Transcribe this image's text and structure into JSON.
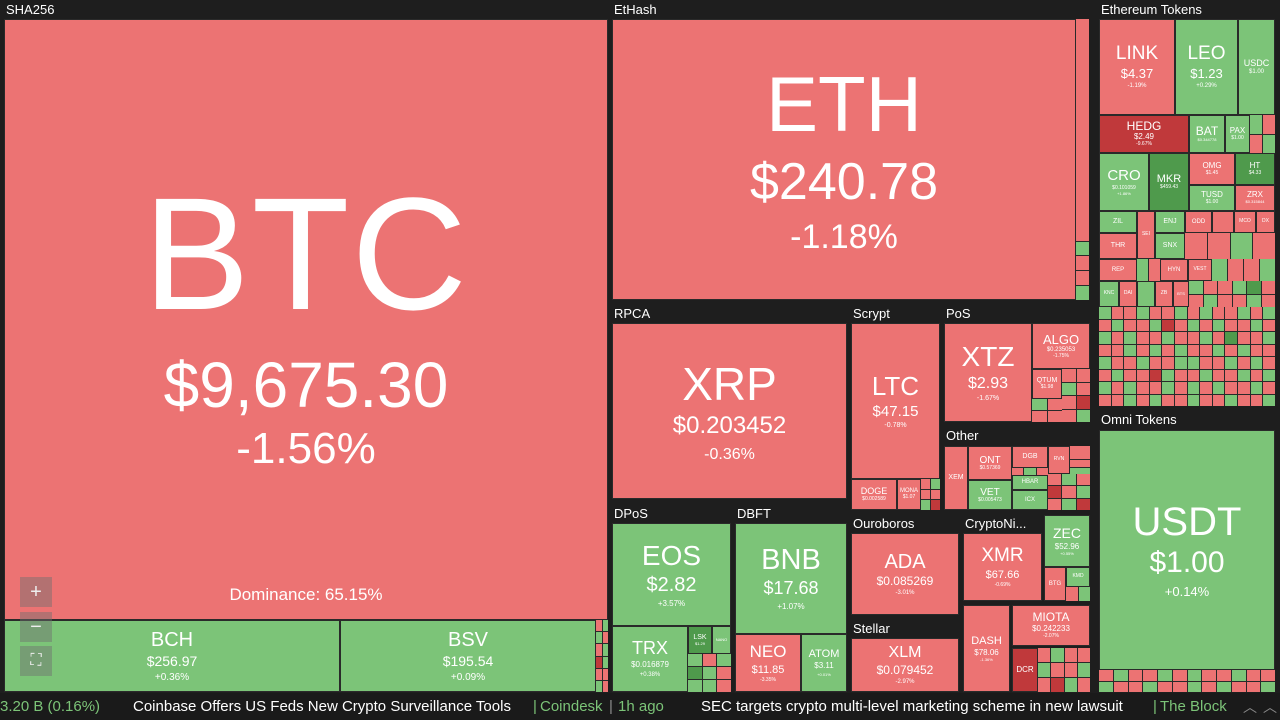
{
  "groups": {
    "sha256": "SHA256",
    "ethash": "EtHash",
    "eth_tokens": "Ethereum Tokens",
    "rpca": "RPCA",
    "scrypt": "Scrypt",
    "pos": "PoS",
    "other": "Other",
    "omni": "Omni Tokens",
    "dpos": "DPoS",
    "dbft": "DBFT",
    "ouroboros": "Ouroboros",
    "cryptonight": "CryptoNi...",
    "stellar": "Stellar"
  },
  "btc": {
    "sym": "BTC",
    "price": "$9,675.30",
    "chg": "-1.56%",
    "dominance": "Dominance: 65.15%"
  },
  "bch": {
    "sym": "BCH",
    "price": "$256.97",
    "chg": "+0.36%"
  },
  "bsv": {
    "sym": "BSV",
    "price": "$195.54",
    "chg": "+0.09%"
  },
  "eth": {
    "sym": "ETH",
    "price": "$240.78",
    "chg": "-1.18%"
  },
  "xrp": {
    "sym": "XRP",
    "price": "$0.203452",
    "chg": "-0.36%"
  },
  "ltc": {
    "sym": "LTC",
    "price": "$47.15",
    "chg": "-0.78%"
  },
  "doge": {
    "sym": "DOGE",
    "price": "$0.002589",
    "chg": "-1.11%"
  },
  "mona": {
    "sym": "MONA",
    "price": "$1.07",
    "chg": "-0.46%"
  },
  "xtz": {
    "sym": "XTZ",
    "price": "$2.93",
    "chg": "-1.67%"
  },
  "algo": {
    "sym": "ALGO",
    "price": "$0.235053",
    "chg": "-1.75%"
  },
  "qtum": {
    "sym": "QTUM",
    "price": "$1.98",
    "chg": "-0.32%"
  },
  "ont": {
    "sym": "ONT",
    "price": "$0.57369",
    "chg": "-0.89%"
  },
  "dgb": {
    "sym": "DGB",
    "price": "$0.021108",
    "chg": "-1.78%"
  },
  "xem": {
    "sym": "XEM",
    "price": "$0.04",
    "chg": "-1.27%"
  },
  "vet": {
    "sym": "VET",
    "price": "$0.005473",
    "chg": "+0.29%"
  },
  "hbar": {
    "sym": "HBAR",
    "price": "$0.04",
    "chg": "+1.10%"
  },
  "icx": {
    "sym": "ICX",
    "price": "$0.186",
    "chg": "+0.92%"
  },
  "rvn": {
    "sym": "RVN",
    "price": "",
    "chg": ""
  },
  "link": {
    "sym": "LINK",
    "price": "$4.37",
    "chg": "-1.19%"
  },
  "leo": {
    "sym": "LEO",
    "price": "$1.23",
    "chg": "+0.29%"
  },
  "usdc": {
    "sym": "USDC",
    "price": "$1.00",
    "chg": "+0.01%"
  },
  "hedg": {
    "sym": "HEDG",
    "price": "$2.49",
    "chg": "-9.67%"
  },
  "bat": {
    "sym": "BAT",
    "price": "$0.344778",
    "chg": "+0.45%"
  },
  "pax": {
    "sym": "PAX",
    "price": "$1.00",
    "chg": "+0.02%"
  },
  "cro": {
    "sym": "CRO",
    "price": "$0.101059",
    "chg": "+1.86%"
  },
  "mkr": {
    "sym": "MKR",
    "price": "$459.43",
    "chg": "+0.17%"
  },
  "omg": {
    "sym": "OMG",
    "price": "$1.45",
    "chg": "-1.10%"
  },
  "ht": {
    "sym": "HT",
    "price": "$4.33",
    "chg": "+0.86%"
  },
  "tusd": {
    "sym": "TUSD",
    "price": "$1.00",
    "chg": "+0.02%"
  },
  "zrx": {
    "sym": "ZRX",
    "price": "$0.315844",
    "chg": "-1.68%"
  },
  "zil": {
    "sym": "ZIL"
  },
  "enj": {
    "sym": "ENJ"
  },
  "snx": {
    "sym": "SNX"
  },
  "odd": {
    "sym": "ODD"
  },
  "mco": {
    "sym": "MCO"
  },
  "dx": {
    "sym": "DX"
  },
  "sei": {
    "sym": "SEI"
  },
  "thr": {
    "sym": "THR"
  },
  "rep": {
    "sym": "REP"
  },
  "hyn": {
    "sym": "HYN"
  },
  "vest": {
    "sym": "VEST"
  },
  "knc": {
    "sym": "KNC"
  },
  "dai": {
    "sym": "DAI"
  },
  "zb": {
    "sym": "ZB"
  },
  "bts": {
    "sym": "BTS"
  },
  "usdt": {
    "sym": "USDT",
    "price": "$1.00",
    "chg": "+0.14%"
  },
  "eos": {
    "sym": "EOS",
    "price": "$2.82",
    "chg": "+3.57%"
  },
  "trx": {
    "sym": "TRX",
    "price": "$0.016879",
    "chg": "+0.38%"
  },
  "lsk": {
    "sym": "LSK",
    "price": "$1.29",
    "chg": ""
  },
  "nano": {
    "sym": "NANO",
    "price": "",
    "chg": ""
  },
  "bnb": {
    "sym": "BNB",
    "price": "$17.68",
    "chg": "+1.07%"
  },
  "neo": {
    "sym": "NEO",
    "price": "$11.85",
    "chg": "-3.35%"
  },
  "atom": {
    "sym": "ATOM",
    "price": "$3.11",
    "chg": "+0.01%"
  },
  "ada": {
    "sym": "ADA",
    "price": "$0.085269",
    "chg": "-3.01%"
  },
  "xmr": {
    "sym": "XMR",
    "price": "$67.66",
    "chg": "-0.69%"
  },
  "zec": {
    "sym": "ZEC",
    "price": "$52.96",
    "chg": "+0.55%"
  },
  "btg": {
    "sym": "BTG"
  },
  "kmd": {
    "sym": "KMD"
  },
  "xlm": {
    "sym": "XLM",
    "price": "$0.079452",
    "chg": "-2.97%"
  },
  "dash": {
    "sym": "DASH",
    "price": "$78.06",
    "chg": "-1.36%"
  },
  "miota": {
    "sym": "MIOTA",
    "price": "$0.242233",
    "chg": "-2.07%"
  },
  "dcr": {
    "sym": "DCR",
    "price": "",
    "chg": ""
  },
  "controls": {
    "zoom_in": "+",
    "zoom_out": "−",
    "fit": "⛶"
  },
  "ticker": {
    "market": "3.20 B (0.16%)",
    "news1": "Coinbase Offers US Feds New Crypto Surveillance Tools",
    "sep": " | ",
    "source1": "Coinbase",
    "source1_display": "Coindesk",
    "time1": "1h ago",
    "news2": "SEC targets crypto multi-level marketing scheme in new lawsuit",
    "source2": "The Block"
  },
  "colors": {
    "red": "#ec7373",
    "green": "#7cc478",
    "dark_red": "#c0393b",
    "dark_green": "#4f9a4c",
    "background": "#1e1e1e"
  },
  "icons": {
    "zoom_in": "plus-icon",
    "zoom_out": "minus-icon",
    "fit": "fit-screen-icon",
    "scroll": "chevron-up-icon"
  }
}
